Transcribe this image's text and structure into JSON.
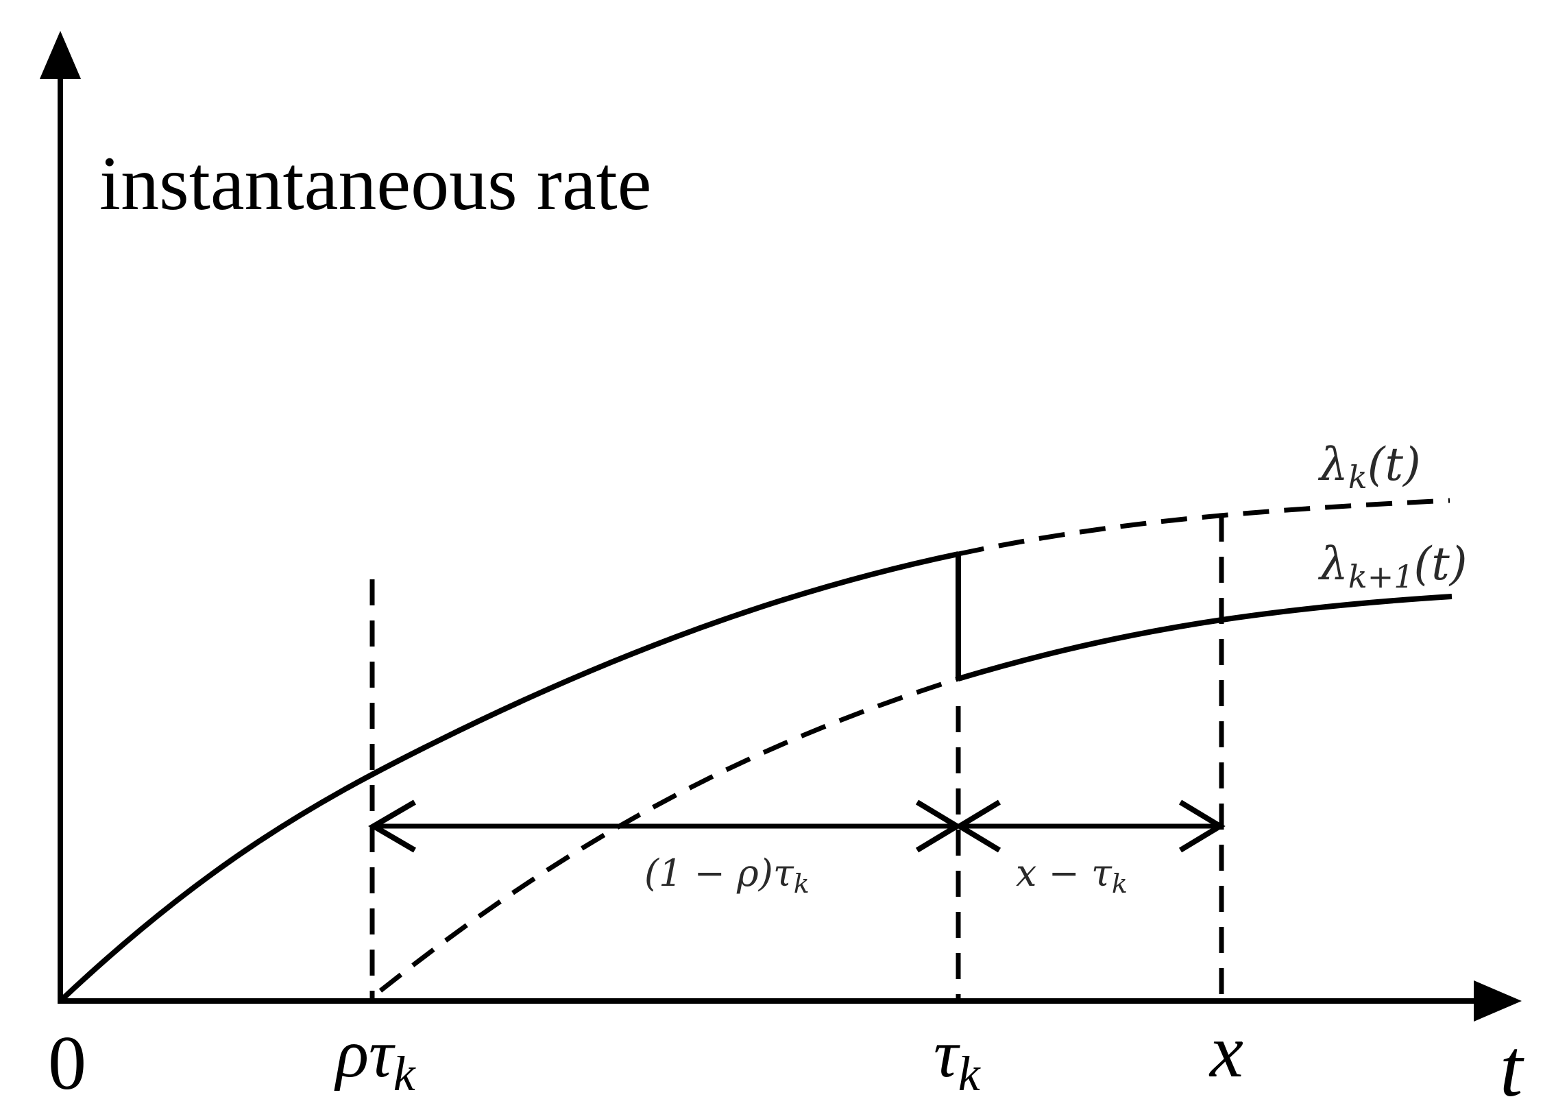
{
  "diagram": {
    "y_axis_label": "instantaneous rate",
    "x_axis_symbol": "t",
    "origin_label": "0",
    "ticks": {
      "rho_tau_k": "ρτ",
      "rho_tau_k_sub": "k",
      "tau_k": "τ",
      "tau_k_sub": "k",
      "x": "x"
    },
    "curves": {
      "lambda_k": {
        "base": "λ",
        "sub": "k",
        "arg": "(t)"
      },
      "lambda_k_plus_1": {
        "base": "λ",
        "sub": "k+1",
        "arg": "(t)"
      }
    },
    "intervals": {
      "first": {
        "main": "(1 − ρ)τ",
        "sub": "k"
      },
      "second": {
        "main": "x − τ",
        "sub": "k"
      }
    },
    "colors": {
      "stroke": "#000000",
      "background": "#ffffff"
    }
  }
}
